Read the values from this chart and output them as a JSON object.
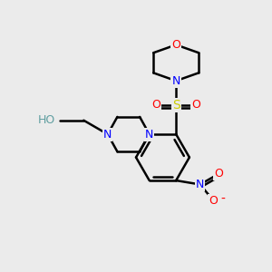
{
  "background_color": "#ebebeb",
  "line_color": "#000000",
  "atom_colors": {
    "O": "#ff0000",
    "N": "#0000ff",
    "S": "#cccc00",
    "HO": "#5f9ea0"
  },
  "lw": 1.8,
  "figsize": [
    3.0,
    3.0
  ],
  "dpi": 100
}
